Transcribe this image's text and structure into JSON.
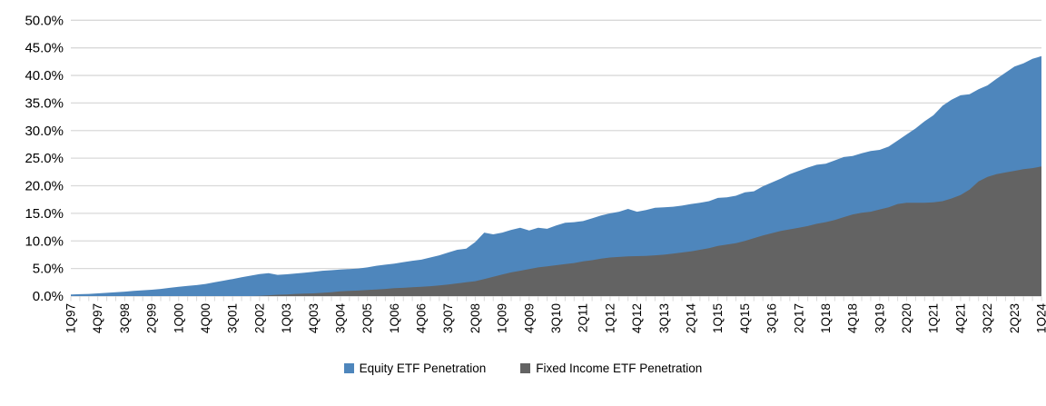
{
  "chart_data": {
    "type": "area",
    "mode": "overlay",
    "title": "",
    "xlabel": "",
    "ylabel": "",
    "ylim": [
      0,
      50
    ],
    "ytick_step": 5,
    "y_tick_labels": [
      "0.0%",
      "5.0%",
      "10.0%",
      "15.0%",
      "20.0%",
      "25.0%",
      "30.0%",
      "35.0%",
      "40.0%",
      "45.0%",
      "50.0%"
    ],
    "grid": "horizontal",
    "legend_position": "bottom-center",
    "x_tick_every": 3,
    "x_tick_labels": [
      "1Q97",
      "4Q97",
      "3Q98",
      "2Q99",
      "1Q00",
      "4Q00",
      "3Q01",
      "2Q02",
      "1Q03",
      "4Q03",
      "3Q04",
      "2Q05",
      "1Q06",
      "4Q06",
      "3Q07",
      "2Q08",
      "1Q09",
      "4Q09",
      "3Q10",
      "2Q11",
      "1Q12",
      "4Q12",
      "3Q13",
      "2Q14",
      "1Q15",
      "4Q15",
      "3Q16",
      "2Q17",
      "1Q18",
      "4Q18",
      "3Q19",
      "2Q20",
      "1Q21",
      "4Q21",
      "3Q22",
      "2Q23",
      "1Q24"
    ],
    "series": [
      {
        "name": "Equity ETF Penetration",
        "color": "#4E86BC",
        "values": [
          0.3,
          0.35,
          0.4,
          0.5,
          0.6,
          0.7,
          0.8,
          0.95,
          1.05,
          1.15,
          1.3,
          1.5,
          1.7,
          1.85,
          2.0,
          2.2,
          2.5,
          2.8,
          3.1,
          3.4,
          3.7,
          4.0,
          4.15,
          3.85,
          3.95,
          4.1,
          4.25,
          4.4,
          4.6,
          4.7,
          4.8,
          4.9,
          5.0,
          5.2,
          5.5,
          5.7,
          5.9,
          6.15,
          6.4,
          6.6,
          7.0,
          7.4,
          7.9,
          8.4,
          8.6,
          9.8,
          11.5,
          11.2,
          11.5,
          12.0,
          12.4,
          11.9,
          12.4,
          12.2,
          12.8,
          13.3,
          13.4,
          13.6,
          14.1,
          14.6,
          15.0,
          15.3,
          15.8,
          15.3,
          15.6,
          16.0,
          16.1,
          16.2,
          16.4,
          16.7,
          16.9,
          17.2,
          17.8,
          17.9,
          18.2,
          18.8,
          19.0,
          19.9,
          20.6,
          21.3,
          22.1,
          22.7,
          23.3,
          23.8,
          24.0,
          24.6,
          25.2,
          25.4,
          25.9,
          26.3,
          26.5,
          27.1,
          28.2,
          29.3,
          30.4,
          31.7,
          32.8,
          34.5,
          35.6,
          36.4,
          36.6,
          37.5,
          38.2,
          39.4,
          40.5,
          41.6,
          42.2,
          43.0,
          43.5
        ]
      },
      {
        "name": "Fixed Income ETF Penetration",
        "color": "#636363",
        "values": [
          0,
          0,
          0,
          0,
          0,
          0,
          0,
          0,
          0,
          0,
          0,
          0,
          0,
          0,
          0,
          0,
          0,
          0,
          0,
          0,
          0,
          0.05,
          0.15,
          0.25,
          0.3,
          0.4,
          0.45,
          0.5,
          0.6,
          0.7,
          0.85,
          0.95,
          1.0,
          1.1,
          1.2,
          1.3,
          1.45,
          1.5,
          1.6,
          1.7,
          1.8,
          1.95,
          2.1,
          2.3,
          2.5,
          2.7,
          3.1,
          3.5,
          3.9,
          4.3,
          4.6,
          4.9,
          5.2,
          5.4,
          5.6,
          5.8,
          6.0,
          6.3,
          6.5,
          6.8,
          7.0,
          7.1,
          7.2,
          7.25,
          7.3,
          7.4,
          7.5,
          7.7,
          7.9,
          8.1,
          8.4,
          8.7,
          9.1,
          9.35,
          9.6,
          10.0,
          10.5,
          11.0,
          11.4,
          11.8,
          12.1,
          12.4,
          12.7,
          13.1,
          13.4,
          13.8,
          14.3,
          14.8,
          15.1,
          15.3,
          15.7,
          16.1,
          16.7,
          16.9,
          16.9,
          16.9,
          17.0,
          17.2,
          17.7,
          18.3,
          19.3,
          20.8,
          21.6,
          22.1,
          22.4,
          22.7,
          23.0,
          23.2,
          23.5
        ]
      }
    ],
    "colors": {
      "gridline": "#D9D9D9",
      "axis_line": "#D6D6D6",
      "tick": "#D9D9D9",
      "text": "#000000"
    }
  },
  "legend": {
    "items": [
      {
        "label": "Equity ETF Penetration",
        "swatch": "#4E86BC"
      },
      {
        "label": "Fixed Income ETF Penetration",
        "swatch": "#636363"
      }
    ]
  }
}
